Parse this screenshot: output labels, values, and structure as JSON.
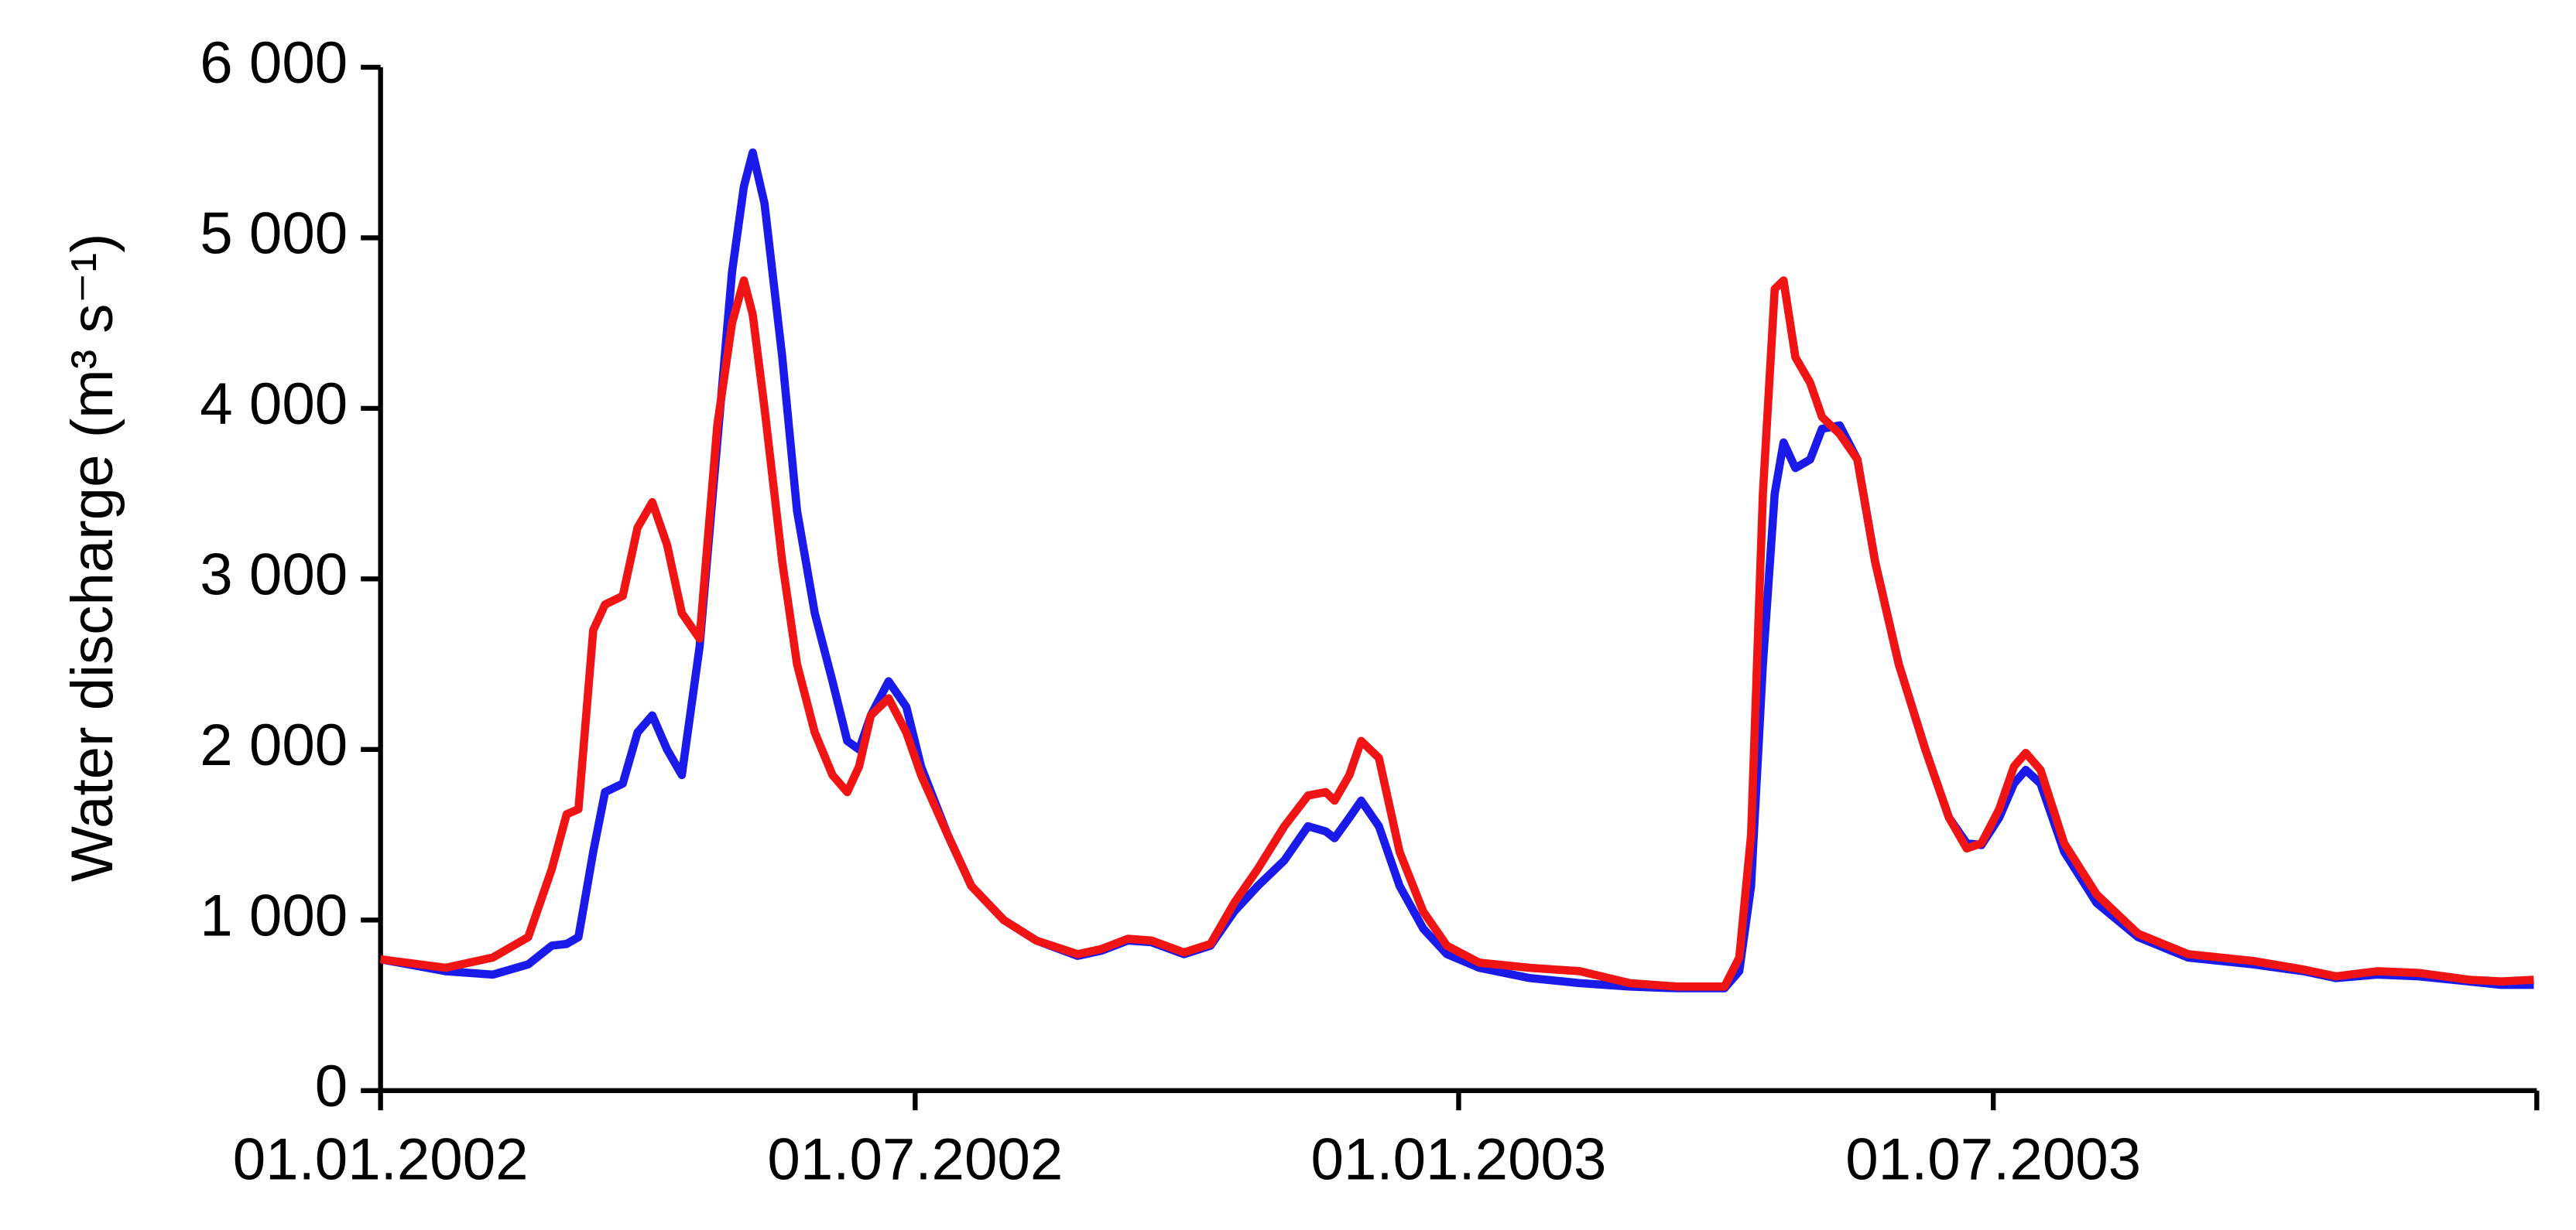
{
  "chart_data": {
    "type": "line",
    "y_label": "Water  discharge (m³ s⁻¹)",
    "x": [
      "2002-01-01",
      "2002-01-23",
      "2002-02-08",
      "2002-02-20",
      "2002-02-28",
      "2002-03-05",
      "2002-03-09",
      "2002-03-14",
      "2002-03-18",
      "2002-03-24",
      "2002-03-29",
      "2002-04-03",
      "2002-04-08",
      "2002-04-13",
      "2002-04-19",
      "2002-04-25",
      "2002-04-30",
      "2002-05-04",
      "2002-05-07",
      "2002-05-11",
      "2002-05-17",
      "2002-05-22",
      "2002-05-28",
      "2002-06-03",
      "2002-06-08",
      "2002-06-12",
      "2002-06-16",
      "2002-06-22",
      "2002-06-28",
      "2002-07-03",
      "2002-07-12",
      "2002-07-20",
      "2002-07-31",
      "2002-08-11",
      "2002-08-25",
      "2002-09-02",
      "2002-09-11",
      "2002-09-19",
      "2002-09-30",
      "2002-10-09",
      "2002-10-17",
      "2002-10-25",
      "2002-11-03",
      "2002-11-11",
      "2002-11-17",
      "2002-11-20",
      "2002-11-25",
      "2002-11-29",
      "2002-12-05",
      "2002-12-12",
      "2002-12-20",
      "2002-12-28",
      "2003-01-08",
      "2003-01-25",
      "2003-02-11",
      "2003-02-28",
      "2003-03-16",
      "2003-04-01",
      "2003-04-06",
      "2003-04-10",
      "2003-04-14",
      "2003-04-18",
      "2003-04-21",
      "2003-04-25",
      "2003-04-30",
      "2003-05-04",
      "2003-05-10",
      "2003-05-16",
      "2003-05-22",
      "2003-05-30",
      "2003-06-08",
      "2003-06-16",
      "2003-06-22",
      "2003-06-27",
      "2003-07-03",
      "2003-07-08",
      "2003-07-12",
      "2003-07-17",
      "2003-07-25",
      "2003-08-05",
      "2003-08-19",
      "2003-09-05",
      "2003-09-27",
      "2003-10-14",
      "2003-10-25",
      "2003-11-08",
      "2003-11-22",
      "2003-12-09",
      "2003-12-20",
      "2003-12-31"
    ],
    "series": [
      {
        "color": "#1a1aeb",
        "values": [
          770,
          700,
          680,
          740,
          850,
          860,
          900,
          1400,
          1750,
          1800,
          2100,
          2200,
          2000,
          1850,
          2600,
          3800,
          4800,
          5300,
          5500,
          5200,
          4300,
          3400,
          2800,
          2400,
          2050,
          2000,
          2200,
          2400,
          2250,
          1900,
          1500,
          1200,
          1000,
          880,
          790,
          820,
          880,
          870,
          800,
          850,
          1050,
          1200,
          1350,
          1550,
          1520,
          1480,
          1600,
          1700,
          1550,
          1200,
          950,
          800,
          720,
          660,
          630,
          610,
          600,
          600,
          700,
          1200,
          2500,
          3500,
          3800,
          3650,
          3700,
          3880,
          3900,
          3700,
          3100,
          2500,
          2000,
          1600,
          1450,
          1440,
          1600,
          1800,
          1880,
          1800,
          1400,
          1100,
          900,
          780,
          740,
          700,
          660,
          680,
          670,
          640,
          620,
          620
        ]
      },
      {
        "color": "#f01414",
        "values": [
          770,
          720,
          780,
          900,
          1300,
          1620,
          1650,
          2700,
          2850,
          2900,
          3300,
          3450,
          3200,
          2800,
          2650,
          3900,
          4500,
          4750,
          4550,
          4000,
          3100,
          2500,
          2100,
          1850,
          1750,
          1900,
          2200,
          2300,
          2100,
          1850,
          1500,
          1200,
          1000,
          880,
          800,
          830,
          890,
          880,
          810,
          860,
          1100,
          1300,
          1550,
          1730,
          1750,
          1700,
          1850,
          2050,
          1950,
          1400,
          1050,
          850,
          750,
          720,
          700,
          630,
          610,
          610,
          780,
          1500,
          3500,
          4700,
          4750,
          4300,
          4150,
          3950,
          3850,
          3700,
          3100,
          2500,
          2000,
          1600,
          1420,
          1450,
          1650,
          1900,
          1980,
          1880,
          1450,
          1150,
          920,
          800,
          760,
          710,
          670,
          700,
          690,
          650,
          640,
          650
        ]
      }
    ],
    "xlim": [
      "2002-01-01",
      "2004-01-01"
    ],
    "xticks": [
      {
        "value": "2002-01-01",
        "label": "01.01.2002"
      },
      {
        "value": "2002-07-01",
        "label": "01.07.2002"
      },
      {
        "value": "2003-01-01",
        "label": "01.01.2003"
      },
      {
        "value": "2003-07-01",
        "label": "01.07.2003"
      }
    ],
    "ylim": [
      0,
      6000
    ],
    "yticks": [
      0,
      {
        "value": 1000,
        "label": "1 000"
      },
      {
        "value": 2000,
        "label": "2 000"
      },
      {
        "value": 3000,
        "label": "3 000"
      },
      {
        "value": 4000,
        "label": "4 000"
      },
      {
        "value": 5000,
        "label": "5 000"
      },
      {
        "value": 6000,
        "label": "6 000"
      }
    ],
    "grid": false
  }
}
